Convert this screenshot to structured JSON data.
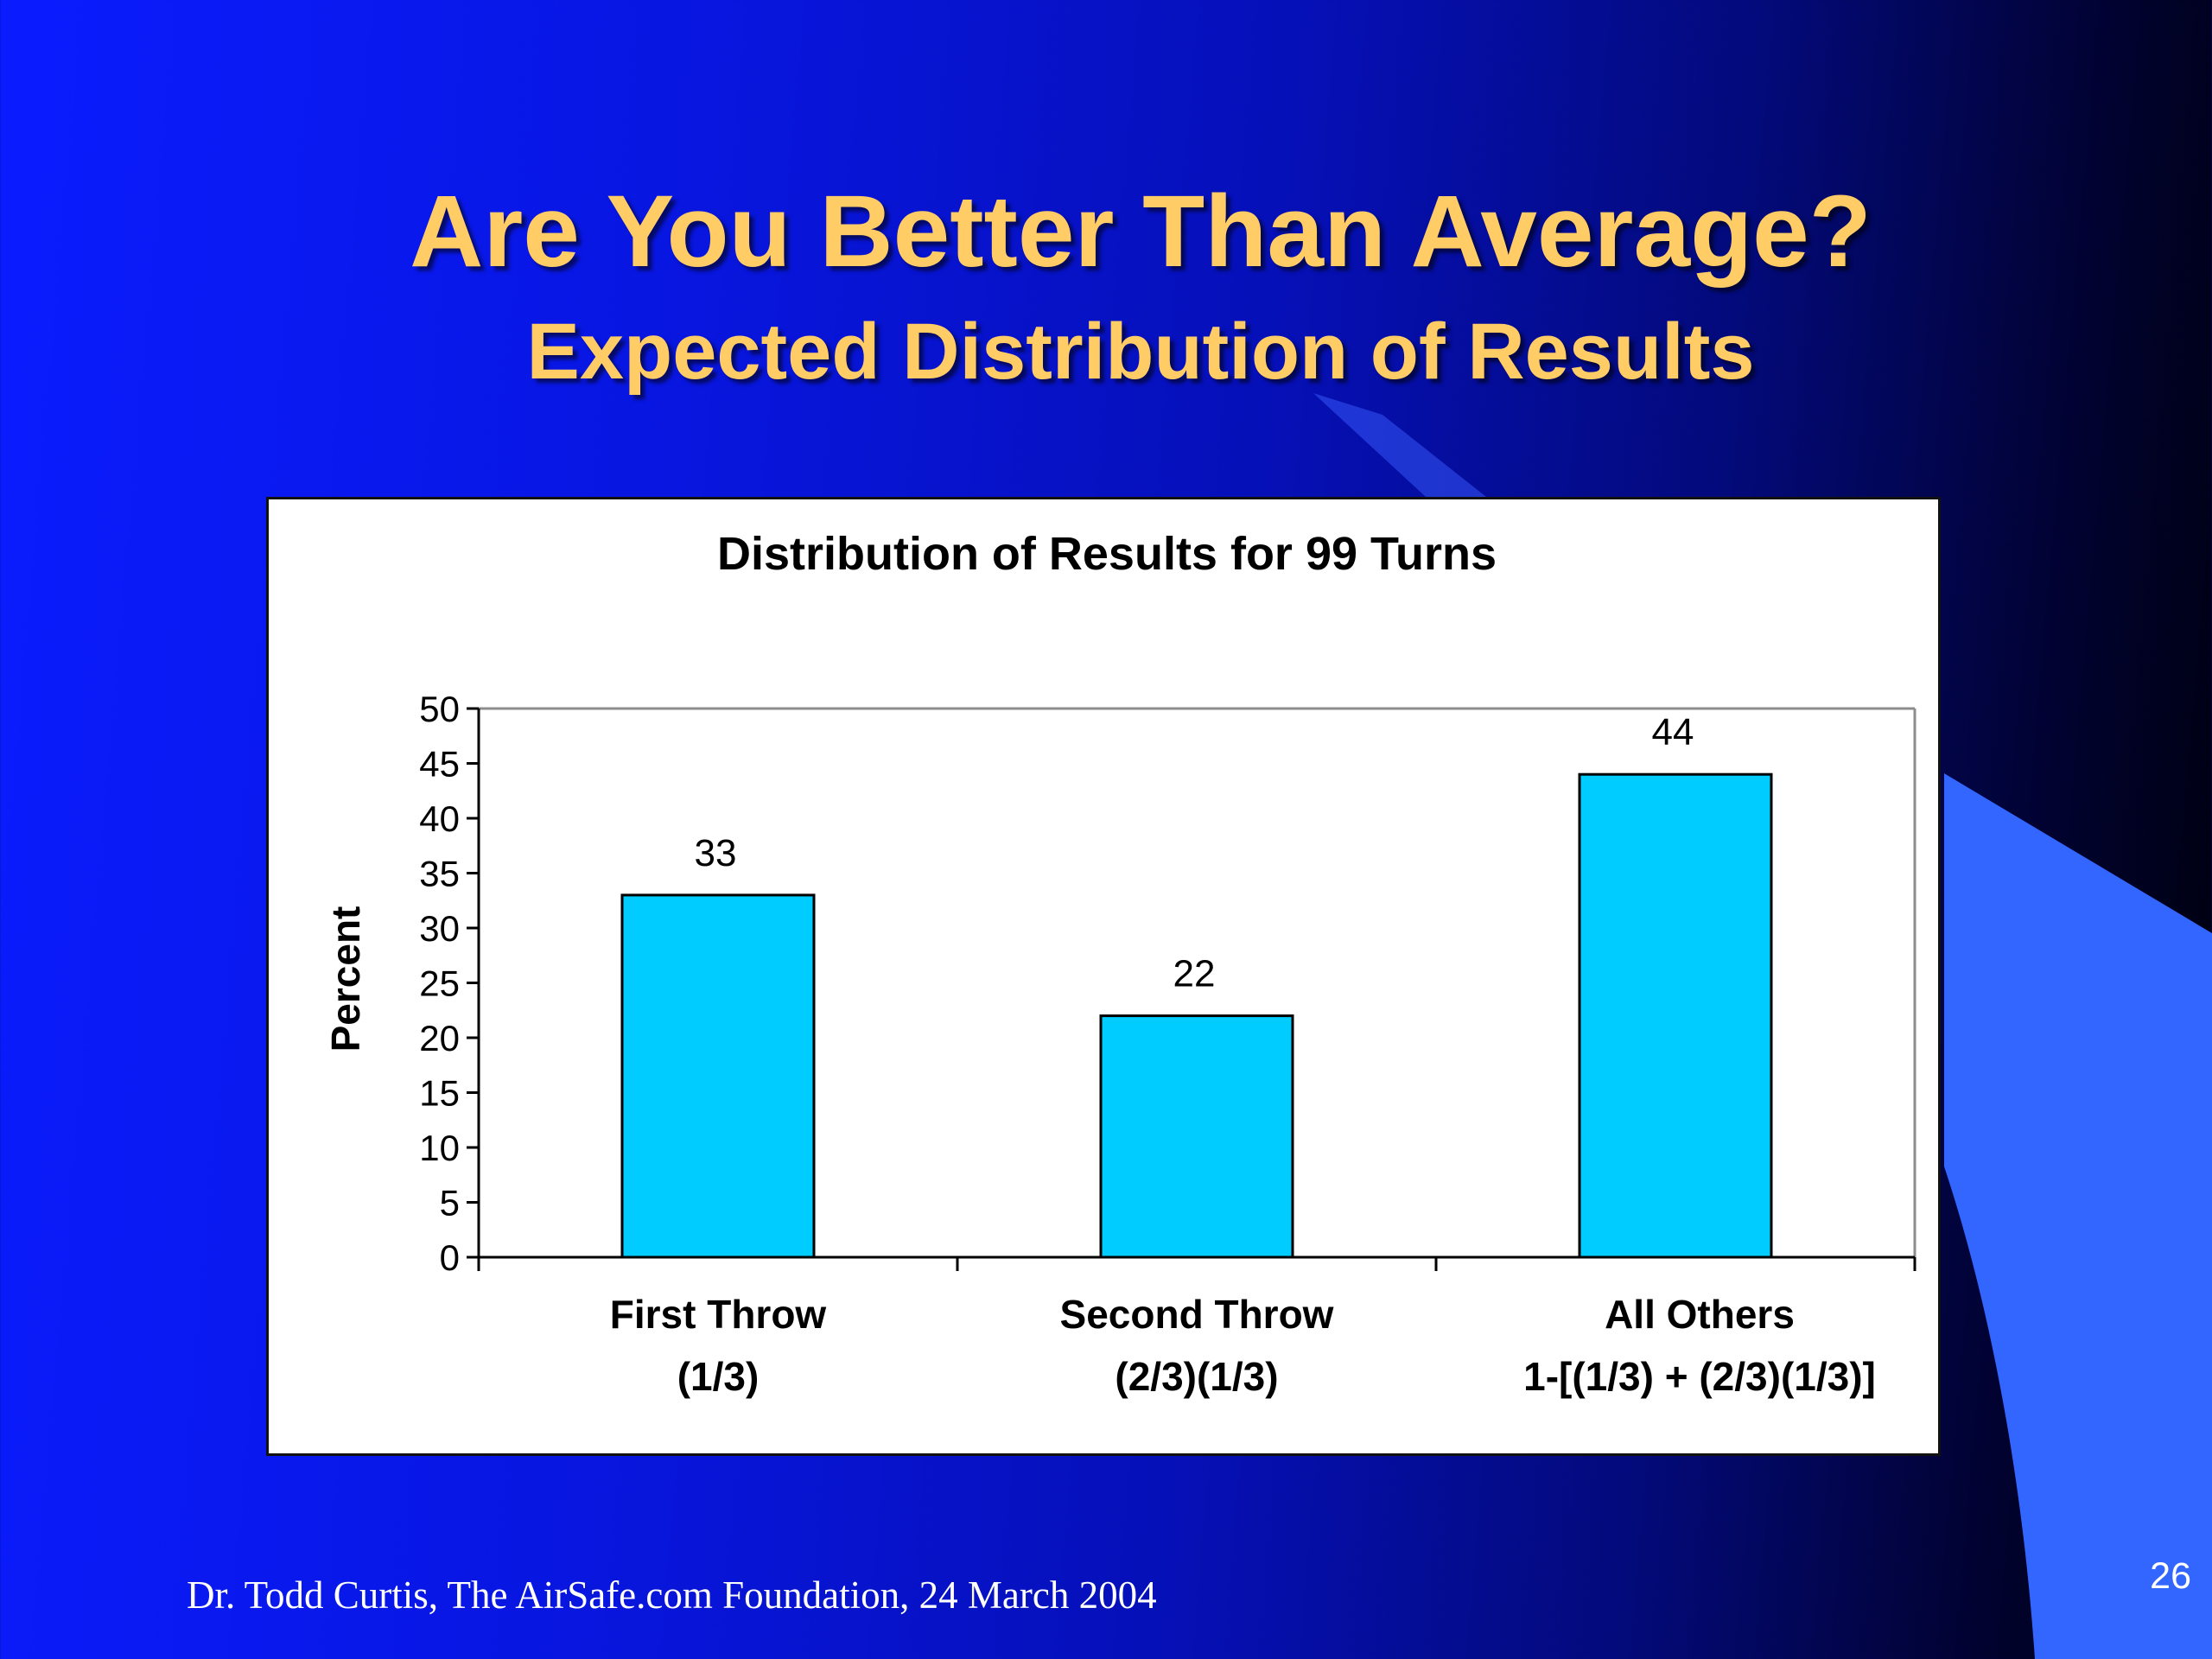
{
  "slide": {
    "title": "Are You Better Than Average?",
    "subtitle": "Expected Distribution of Results",
    "footer": "Dr. Todd Curtis, The AirSafe.com Foundation, 24 March 2004",
    "page_number": "26"
  },
  "colors": {
    "title": "#ffcc66",
    "bar_fill": "#00ccff",
    "bar_stroke": "#000000",
    "deco_blue": "#3366ff"
  },
  "chart_data": {
    "type": "bar",
    "title": "Distribution of Results for 99 Turns",
    "ylabel": "Percent",
    "xlabel": "",
    "ylim": [
      0,
      50
    ],
    "yticks": [
      0,
      5,
      10,
      15,
      20,
      25,
      30,
      35,
      40,
      45,
      50
    ],
    "grid": false,
    "legend": "none",
    "categories": [
      [
        "First Throw",
        "(1/3)"
      ],
      [
        "Second Throw",
        "(2/3)(1/3)"
      ],
      [
        "All Others",
        "1-[(1/3) + (2/3)(1/3)]"
      ]
    ],
    "values": [
      33,
      22,
      44
    ]
  }
}
